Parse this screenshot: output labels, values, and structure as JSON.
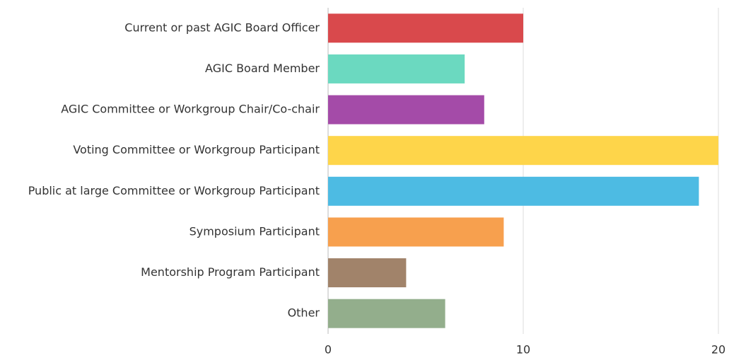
{
  "chart_data": {
    "type": "bar",
    "orientation": "horizontal",
    "categories": [
      "Current or past AGIC Board Officer",
      "AGIC Board Member",
      "AGIC Committee or Workgroup Chair/Co-chair",
      "Voting Committee or Workgroup Participant",
      "Public at large Committee or Workgroup Participant",
      "Symposium Participant",
      "Mentorship Program Participant",
      "Other"
    ],
    "values": [
      10,
      7,
      8,
      20,
      19,
      9,
      4,
      6
    ],
    "colors": [
      "#d9494c",
      "#6bd9c0",
      "#a44ba8",
      "#fed54a",
      "#4dbbe3",
      "#f7a04e",
      "#a1836a",
      "#93ae8c"
    ],
    "xlim": [
      0,
      20
    ],
    "xticks": [
      0,
      10,
      20
    ],
    "grid": true
  }
}
